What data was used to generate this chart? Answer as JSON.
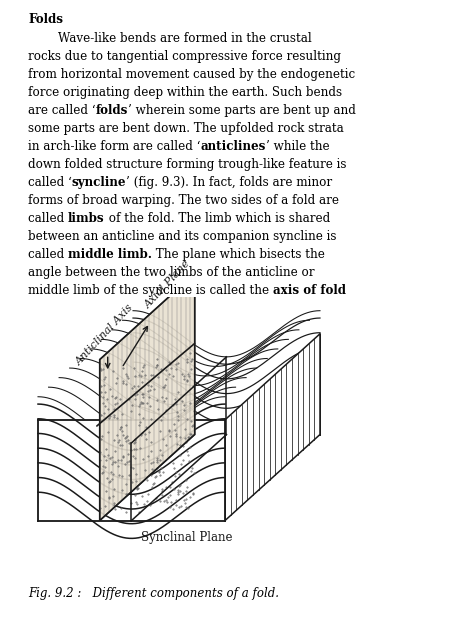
{
  "title": "Folds",
  "lines": [
    [
      [
        "        Wave-like bends are formed in the crustal",
        false
      ]
    ],
    [
      [
        "rocks due to tangential compressive force resulting",
        false
      ]
    ],
    [
      [
        "from horizontal movement caused by the endogenetic",
        false
      ]
    ],
    [
      [
        "force originating deep within the earth. Such bends",
        false
      ]
    ],
    [
      [
        "are called ‘",
        false
      ],
      [
        "folds",
        true
      ],
      [
        "’ wherein some parts are bent up and",
        false
      ]
    ],
    [
      [
        "some parts are bent down. The upfolded rock strata",
        false
      ]
    ],
    [
      [
        "in arch-like form are called ‘",
        false
      ],
      [
        "anticlines",
        true
      ],
      [
        "’ while the",
        false
      ]
    ],
    [
      [
        "down folded structure forming trough-like feature is",
        false
      ]
    ],
    [
      [
        "called ‘",
        false
      ],
      [
        "syncline",
        true
      ],
      [
        "’ (fig. 9.3). In fact, folds are minor",
        false
      ]
    ],
    [
      [
        "forms of broad warping. The two sides of a fold are",
        false
      ]
    ],
    [
      [
        "called ",
        false
      ],
      [
        "limbs",
        true
      ],
      [
        " of the fold. The limb which is shared",
        false
      ]
    ],
    [
      [
        "between an anticline and its companion syncline is",
        false
      ]
    ],
    [
      [
        "called ",
        false
      ],
      [
        "middle limb.",
        true
      ],
      [
        " The plane which bisects the",
        false
      ]
    ],
    [
      [
        "angle between the two limbs of the anticline or",
        false
      ]
    ],
    [
      [
        "middle limb of the syncline is called the ",
        false
      ],
      [
        "axis of fold",
        true
      ]
    ]
  ],
  "fig_caption": "Fig. 9.2 :   Different components of a fold.",
  "label_anticlinal_axis": "Anticlinal Axis",
  "label_axial_plane": "Axial Plane",
  "label_synclinal_plane": "Synclinal Plane",
  "bg_color": "#ffffff",
  "text_color": "#000000",
  "diagram_color": "#1a1a1a"
}
